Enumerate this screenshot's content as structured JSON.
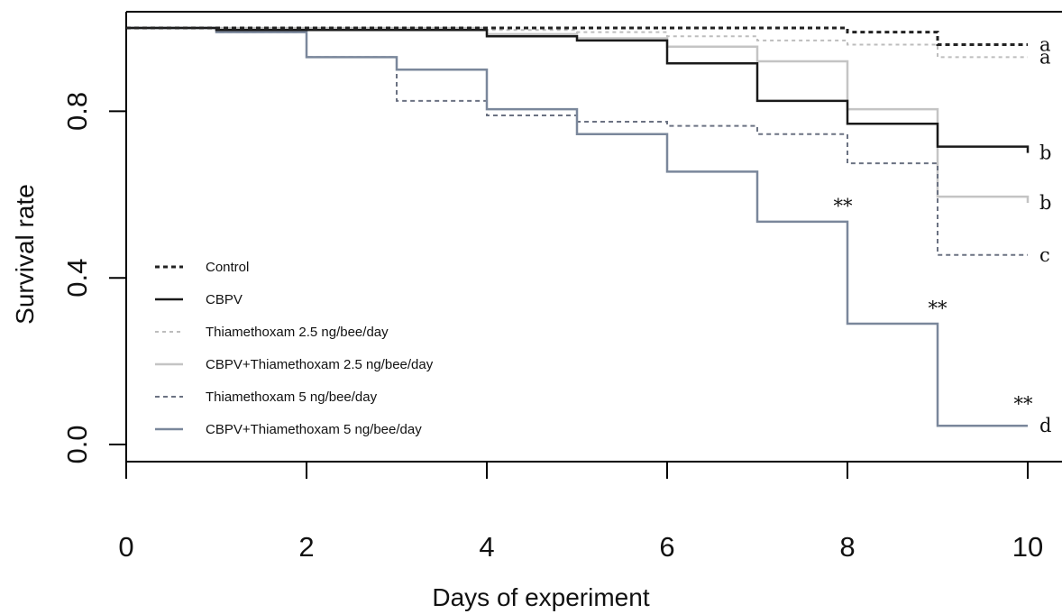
{
  "chart_data": {
    "type": "line",
    "step": true,
    "title": "",
    "xlabel": "Days of experiment",
    "ylabel": "Survival rate",
    "xlim": [
      0,
      10
    ],
    "ylim": [
      0,
      1
    ],
    "x_ticks": [
      "0",
      "2",
      "4",
      "6",
      "8",
      "10"
    ],
    "y_ticks": [
      "0.0",
      "0.4",
      "0.8"
    ],
    "legend_position": "left",
    "series": [
      {
        "name": "Control",
        "color": "#222222",
        "dash": "dotted-heavy",
        "x": [
          0,
          5,
          7,
          8,
          9,
          10
        ],
        "y": [
          1.0,
          1.0,
          1.0,
          0.99,
          0.96,
          0.96
        ],
        "end_label": "a"
      },
      {
        "name": "CBPV",
        "color": "#1a1a1a",
        "dash": "solid",
        "x": [
          0,
          1,
          4,
          5,
          6,
          7,
          8,
          9,
          10
        ],
        "y": [
          1.0,
          0.995,
          0.98,
          0.97,
          0.915,
          0.825,
          0.77,
          0.715,
          0.7
        ],
        "end_label": "b"
      },
      {
        "name": "Thiamethoxam 2.5 ng/bee/day",
        "color": "#bdbdbd",
        "dash": "dotted-light",
        "x": [
          0,
          4,
          5,
          6,
          7,
          8,
          9,
          10
        ],
        "y": [
          1.0,
          0.995,
          0.99,
          0.98,
          0.97,
          0.96,
          0.93,
          0.93
        ],
        "end_label": "a"
      },
      {
        "name": "CBPV+Thiamethoxam 2.5 ng/bee/day",
        "color": "#c4c4c4",
        "dash": "solid",
        "x": [
          0,
          4,
          5,
          6,
          7,
          8,
          9,
          10
        ],
        "y": [
          1.0,
          0.985,
          0.975,
          0.955,
          0.92,
          0.805,
          0.595,
          0.58
        ],
        "end_label": "b"
      },
      {
        "name": "Thiamethoxam 5 ng/bee/day",
        "color": "#6b7282",
        "dash": "dashed",
        "x": [
          0,
          1,
          2,
          3,
          4,
          5,
          6,
          7,
          8,
          9,
          10
        ],
        "y": [
          1.0,
          0.99,
          0.93,
          0.825,
          0.79,
          0.775,
          0.765,
          0.745,
          0.675,
          0.455,
          0.455
        ],
        "end_label": "c"
      },
      {
        "name": "CBPV+Thiamethoxam 5 ng/bee/day",
        "color": "#7a879b",
        "dash": "solid",
        "x": [
          0,
          1,
          2,
          3,
          4,
          5,
          6,
          7,
          8,
          9,
          10
        ],
        "y": [
          1.0,
          0.99,
          0.93,
          0.9,
          0.805,
          0.745,
          0.655,
          0.535,
          0.29,
          0.045,
          0.045
        ],
        "end_label": "d"
      }
    ],
    "annotations": [
      {
        "text": "**",
        "x": 7.95,
        "y": 0.57
      },
      {
        "text": "**",
        "x": 9.0,
        "y": 0.325
      },
      {
        "text": "**",
        "x": 9.95,
        "y": 0.095
      }
    ]
  }
}
